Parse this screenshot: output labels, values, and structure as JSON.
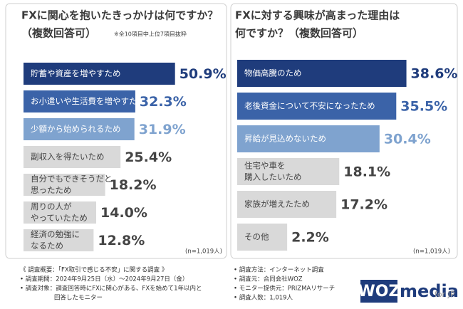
{
  "chart_data": [
    {
      "type": "bar",
      "orientation": "horizontal",
      "title": [
        "FXに関心を抱いたきっかけは何ですか？",
        "（複数回答可）"
      ],
      "note": "※全10項目中上位7項目抜粋",
      "categories": [
        [
          "貯蓄や資産を増やすため"
        ],
        [
          "お小遣いや生活費を増やすため"
        ],
        [
          "少額から始められるため"
        ],
        [
          "副収入を得たいため"
        ],
        [
          "自分でもできそうだと",
          "思ったため"
        ],
        [
          "周りの人が",
          "やっていたため"
        ],
        [
          "経済の勉強に",
          "なるため"
        ]
      ],
      "values": [
        50.9,
        32.3,
        31.9,
        25.4,
        18.2,
        14.0,
        12.8
      ],
      "value_labels": [
        "50.9%",
        "32.3%",
        "31.9%",
        "25.4%",
        "18.2%",
        "14.0%",
        "12.8%"
      ],
      "colors": [
        "#1f3c7c",
        "#3b63a8",
        "#7fa3cf",
        "#d9d9d9",
        "#d9d9d9",
        "#d9d9d9",
        "#d9d9d9"
      ],
      "sample": "(n=1,019人)"
    },
    {
      "type": "bar",
      "orientation": "horizontal",
      "title": [
        "FXに対する興味が高まった理由は",
        "何ですか？（複数回答可）"
      ],
      "categories": [
        [
          "物価高騰のため"
        ],
        [
          "老後資金について不安になったため"
        ],
        [
          "昇給が見込めないため"
        ],
        [
          "住宅や車を",
          "購入したいため"
        ],
        [
          "家族が増えたため"
        ],
        [
          "その他"
        ]
      ],
      "values": [
        38.6,
        35.5,
        30.4,
        18.1,
        17.2,
        2.2
      ],
      "value_labels": [
        "38.6%",
        "35.5%",
        "30.4%",
        "18.1%",
        "17.2%",
        "2.2%"
      ],
      "colors": [
        "#1f3c7c",
        "#3b63a8",
        "#7fa3cf",
        "#d9d9d9",
        "#d9d9d9",
        "#d9d9d9"
      ],
      "sample": "(n=1,019人)"
    }
  ],
  "survey": {
    "left": [
      "《 調査概要：「FX取引で感じる不安」に関する調査 》",
      "• 調査期間：2024年9月25日（水）～2024年9月27日（金）",
      "• 調査対象：調査回答時にFXに関心がある、FXを始めて1年以内と",
      "回答したモニター"
    ],
    "right": [
      "• 調査方法：インターネット調査",
      "• 調査元：合同会社WOZ",
      "• モニター提供元：PRIZMAリサーチ",
      "• 調査人数：1,019人"
    ]
  },
  "logo": {
    "box": "WOZ",
    "word": "media",
    "suffix": "for JP"
  }
}
